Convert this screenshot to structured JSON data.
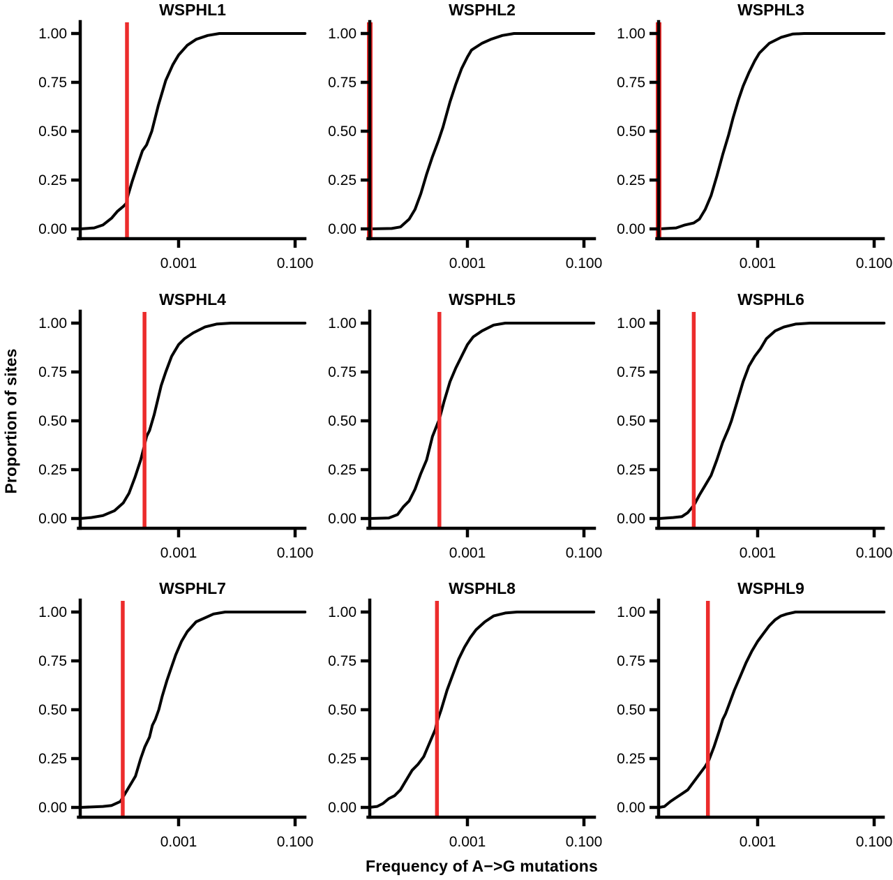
{
  "figure": {
    "xlabel": "Frequency of A−>G mutations",
    "ylabel": "Proportion of sites",
    "colors": {
      "background": "#ffffff",
      "curve": "#000000",
      "axis": "#000000",
      "tick_text": "#000000",
      "threshold_line": "#EC2C2C"
    }
  },
  "chart_data": {
    "type": "line",
    "subtype": "ecdf-small-multiples",
    "grid": {
      "rows": 3,
      "cols": 3
    },
    "x_scale": "log10",
    "x_domain_log10": [
      -4.69,
      -0.83
    ],
    "ylim": [
      0,
      1
    ],
    "x_ticks": [
      {
        "value": 0.001,
        "label": "0.001"
      },
      {
        "value": 0.1,
        "label": "0.100"
      }
    ],
    "y_ticks": [
      {
        "value": 0.0,
        "label": "0.00"
      },
      {
        "value": 0.25,
        "label": "0.25"
      },
      {
        "value": 0.5,
        "label": "0.50"
      },
      {
        "value": 0.75,
        "label": "0.75"
      },
      {
        "value": 1.0,
        "label": "1.00"
      }
    ],
    "panels": [
      {
        "title": "WSPHL1",
        "threshold_freq": 0.00013,
        "threshold_log10": -3.87,
        "red_line_at_axis": false,
        "proportion_at_threshold": 0.18,
        "ecdf_log10_points": [
          [
            -4.69,
            0
          ],
          [
            -4.45,
            0.005
          ],
          [
            -4.3,
            0.02
          ],
          [
            -4.15,
            0.055
          ],
          [
            -4.05,
            0.09
          ],
          [
            -3.95,
            0.115
          ],
          [
            -3.9,
            0.13
          ],
          [
            -3.87,
            0.17
          ],
          [
            -3.8,
            0.24
          ],
          [
            -3.7,
            0.33
          ],
          [
            -3.62,
            0.4
          ],
          [
            -3.55,
            0.43
          ],
          [
            -3.46,
            0.5
          ],
          [
            -3.35,
            0.63
          ],
          [
            -3.28,
            0.7
          ],
          [
            -3.22,
            0.76
          ],
          [
            -3.1,
            0.84
          ],
          [
            -3.0,
            0.89
          ],
          [
            -2.85,
            0.94
          ],
          [
            -2.7,
            0.97
          ],
          [
            -2.5,
            0.99
          ],
          [
            -2.3,
            1.0
          ],
          [
            -0.83,
            1.0
          ]
        ]
      },
      {
        "title": "WSPHL2",
        "threshold_freq": 2e-05,
        "threshold_log10": -4.69,
        "red_line_at_axis": true,
        "proportion_at_threshold": 0.0,
        "ecdf_log10_points": [
          [
            -4.69,
            0
          ],
          [
            -4.3,
            0.002
          ],
          [
            -4.15,
            0.01
          ],
          [
            -4.0,
            0.05
          ],
          [
            -3.9,
            0.1
          ],
          [
            -3.8,
            0.18
          ],
          [
            -3.7,
            0.28
          ],
          [
            -3.6,
            0.37
          ],
          [
            -3.5,
            0.45
          ],
          [
            -3.42,
            0.52
          ],
          [
            -3.3,
            0.65
          ],
          [
            -3.2,
            0.74
          ],
          [
            -3.1,
            0.82
          ],
          [
            -3.0,
            0.88
          ],
          [
            -2.93,
            0.915
          ],
          [
            -2.88,
            0.925
          ],
          [
            -2.75,
            0.95
          ],
          [
            -2.6,
            0.97
          ],
          [
            -2.4,
            0.99
          ],
          [
            -2.2,
            1.0
          ],
          [
            -0.83,
            1.0
          ]
        ]
      },
      {
        "title": "WSPHL3",
        "threshold_freq": 2e-05,
        "threshold_log10": -4.69,
        "red_line_at_axis": true,
        "proportion_at_threshold": 0.0,
        "ecdf_log10_points": [
          [
            -4.69,
            0
          ],
          [
            -4.4,
            0.005
          ],
          [
            -4.25,
            0.02
          ],
          [
            -4.1,
            0.03
          ],
          [
            -4.0,
            0.05
          ],
          [
            -3.9,
            0.1
          ],
          [
            -3.8,
            0.17
          ],
          [
            -3.7,
            0.27
          ],
          [
            -3.6,
            0.38
          ],
          [
            -3.55,
            0.43
          ],
          [
            -3.5,
            0.48
          ],
          [
            -3.42,
            0.57
          ],
          [
            -3.33,
            0.66
          ],
          [
            -3.25,
            0.73
          ],
          [
            -3.15,
            0.8
          ],
          [
            -3.05,
            0.86
          ],
          [
            -2.97,
            0.9
          ],
          [
            -2.8,
            0.95
          ],
          [
            -2.6,
            0.98
          ],
          [
            -2.4,
            0.997
          ],
          [
            -2.2,
            1.0
          ],
          [
            -0.83,
            1.0
          ]
        ]
      },
      {
        "title": "WSPHL4",
        "threshold_freq": 0.00026,
        "threshold_log10": -3.59,
        "red_line_at_axis": false,
        "proportion_at_threshold": 0.38,
        "ecdf_log10_points": [
          [
            -4.69,
            0
          ],
          [
            -4.5,
            0.005
          ],
          [
            -4.3,
            0.015
          ],
          [
            -4.1,
            0.04
          ],
          [
            -3.95,
            0.08
          ],
          [
            -3.85,
            0.13
          ],
          [
            -3.75,
            0.21
          ],
          [
            -3.65,
            0.3
          ],
          [
            -3.59,
            0.37
          ],
          [
            -3.55,
            0.42
          ],
          [
            -3.5,
            0.45
          ],
          [
            -3.42,
            0.53
          ],
          [
            -3.3,
            0.68
          ],
          [
            -3.22,
            0.75
          ],
          [
            -3.12,
            0.83
          ],
          [
            -3.0,
            0.89
          ],
          [
            -2.9,
            0.92
          ],
          [
            -2.75,
            0.95
          ],
          [
            -2.55,
            0.98
          ],
          [
            -2.35,
            0.995
          ],
          [
            -2.1,
            1.0
          ],
          [
            -0.83,
            1.0
          ]
        ]
      },
      {
        "title": "WSPHL5",
        "threshold_freq": 0.00033,
        "threshold_log10": -3.48,
        "red_line_at_axis": false,
        "proportion_at_threshold": 0.51,
        "ecdf_log10_points": [
          [
            -4.69,
            0
          ],
          [
            -4.35,
            0.003
          ],
          [
            -4.2,
            0.02
          ],
          [
            -4.1,
            0.06
          ],
          [
            -4.0,
            0.09
          ],
          [
            -3.9,
            0.15
          ],
          [
            -3.8,
            0.23
          ],
          [
            -3.7,
            0.3
          ],
          [
            -3.6,
            0.42
          ],
          [
            -3.48,
            0.51
          ],
          [
            -3.4,
            0.6
          ],
          [
            -3.3,
            0.7
          ],
          [
            -3.2,
            0.77
          ],
          [
            -3.1,
            0.83
          ],
          [
            -3.0,
            0.89
          ],
          [
            -2.9,
            0.93
          ],
          [
            -2.75,
            0.96
          ],
          [
            -2.55,
            0.99
          ],
          [
            -2.35,
            1.0
          ],
          [
            -0.83,
            1.0
          ]
        ]
      },
      {
        "title": "WSPHL6",
        "threshold_freq": 8e-05,
        "threshold_log10": -4.09,
        "red_line_at_axis": false,
        "proportion_at_threshold": 0.08,
        "ecdf_log10_points": [
          [
            -4.69,
            0
          ],
          [
            -4.45,
            0.005
          ],
          [
            -4.3,
            0.01
          ],
          [
            -4.2,
            0.03
          ],
          [
            -4.09,
            0.07
          ],
          [
            -4.0,
            0.12
          ],
          [
            -3.92,
            0.16
          ],
          [
            -3.8,
            0.22
          ],
          [
            -3.7,
            0.3
          ],
          [
            -3.6,
            0.39
          ],
          [
            -3.5,
            0.46
          ],
          [
            -3.45,
            0.5
          ],
          [
            -3.35,
            0.6
          ],
          [
            -3.25,
            0.7
          ],
          [
            -3.15,
            0.78
          ],
          [
            -3.05,
            0.83
          ],
          [
            -2.95,
            0.87
          ],
          [
            -2.85,
            0.92
          ],
          [
            -2.7,
            0.96
          ],
          [
            -2.55,
            0.98
          ],
          [
            -2.35,
            0.995
          ],
          [
            -2.1,
            1.0
          ],
          [
            -0.83,
            1.0
          ]
        ]
      },
      {
        "title": "WSPHL7",
        "threshold_freq": 0.00011,
        "threshold_log10": -3.96,
        "red_line_at_axis": false,
        "proportion_at_threshold": 0.05,
        "ecdf_log10_points": [
          [
            -4.69,
            0
          ],
          [
            -4.3,
            0.005
          ],
          [
            -4.15,
            0.01
          ],
          [
            -4.0,
            0.03
          ],
          [
            -3.96,
            0.05
          ],
          [
            -3.88,
            0.09
          ],
          [
            -3.8,
            0.13
          ],
          [
            -3.74,
            0.16
          ],
          [
            -3.65,
            0.25
          ],
          [
            -3.58,
            0.31
          ],
          [
            -3.5,
            0.36
          ],
          [
            -3.45,
            0.42
          ],
          [
            -3.4,
            0.45
          ],
          [
            -3.34,
            0.5
          ],
          [
            -3.28,
            0.57
          ],
          [
            -3.2,
            0.65
          ],
          [
            -3.12,
            0.72
          ],
          [
            -3.05,
            0.78
          ],
          [
            -2.95,
            0.85
          ],
          [
            -2.85,
            0.9
          ],
          [
            -2.7,
            0.95
          ],
          [
            -2.55,
            0.97
          ],
          [
            -2.4,
            0.99
          ],
          [
            -2.2,
            1.0
          ],
          [
            -0.83,
            1.0
          ]
        ]
      },
      {
        "title": "WSPHL8",
        "threshold_freq": 0.0003,
        "threshold_log10": -3.53,
        "red_line_at_axis": false,
        "proportion_at_threshold": 0.42,
        "ecdf_log10_points": [
          [
            -4.69,
            0
          ],
          [
            -4.55,
            0.005
          ],
          [
            -4.45,
            0.02
          ],
          [
            -4.35,
            0.045
          ],
          [
            -4.25,
            0.06
          ],
          [
            -4.15,
            0.09
          ],
          [
            -4.05,
            0.14
          ],
          [
            -3.95,
            0.19
          ],
          [
            -3.85,
            0.22
          ],
          [
            -3.75,
            0.26
          ],
          [
            -3.65,
            0.33
          ],
          [
            -3.55,
            0.4
          ],
          [
            -3.53,
            0.43
          ],
          [
            -3.45,
            0.5
          ],
          [
            -3.35,
            0.6
          ],
          [
            -3.25,
            0.68
          ],
          [
            -3.15,
            0.76
          ],
          [
            -3.05,
            0.82
          ],
          [
            -2.95,
            0.87
          ],
          [
            -2.85,
            0.91
          ],
          [
            -2.7,
            0.95
          ],
          [
            -2.55,
            0.98
          ],
          [
            -2.35,
            0.995
          ],
          [
            -2.15,
            1.0
          ],
          [
            -0.83,
            1.0
          ]
        ]
      },
      {
        "title": "WSPHL9",
        "threshold_freq": 0.00014,
        "threshold_log10": -3.84,
        "red_line_at_axis": false,
        "proportion_at_threshold": 0.24,
        "ecdf_log10_points": [
          [
            -4.69,
            0
          ],
          [
            -4.6,
            0.005
          ],
          [
            -4.5,
            0.03
          ],
          [
            -4.4,
            0.05
          ],
          [
            -4.3,
            0.07
          ],
          [
            -4.2,
            0.09
          ],
          [
            -4.1,
            0.13
          ],
          [
            -4.0,
            0.17
          ],
          [
            -3.9,
            0.21
          ],
          [
            -3.84,
            0.24
          ],
          [
            -3.75,
            0.31
          ],
          [
            -3.65,
            0.4
          ],
          [
            -3.6,
            0.45
          ],
          [
            -3.55,
            0.48
          ],
          [
            -3.5,
            0.52
          ],
          [
            -3.4,
            0.6
          ],
          [
            -3.3,
            0.67
          ],
          [
            -3.2,
            0.74
          ],
          [
            -3.1,
            0.8
          ],
          [
            -3.0,
            0.85
          ],
          [
            -2.9,
            0.89
          ],
          [
            -2.8,
            0.93
          ],
          [
            -2.7,
            0.96
          ],
          [
            -2.6,
            0.98
          ],
          [
            -2.5,
            0.99
          ],
          [
            -2.35,
            1.0
          ],
          [
            -0.83,
            1.0
          ]
        ]
      }
    ]
  }
}
